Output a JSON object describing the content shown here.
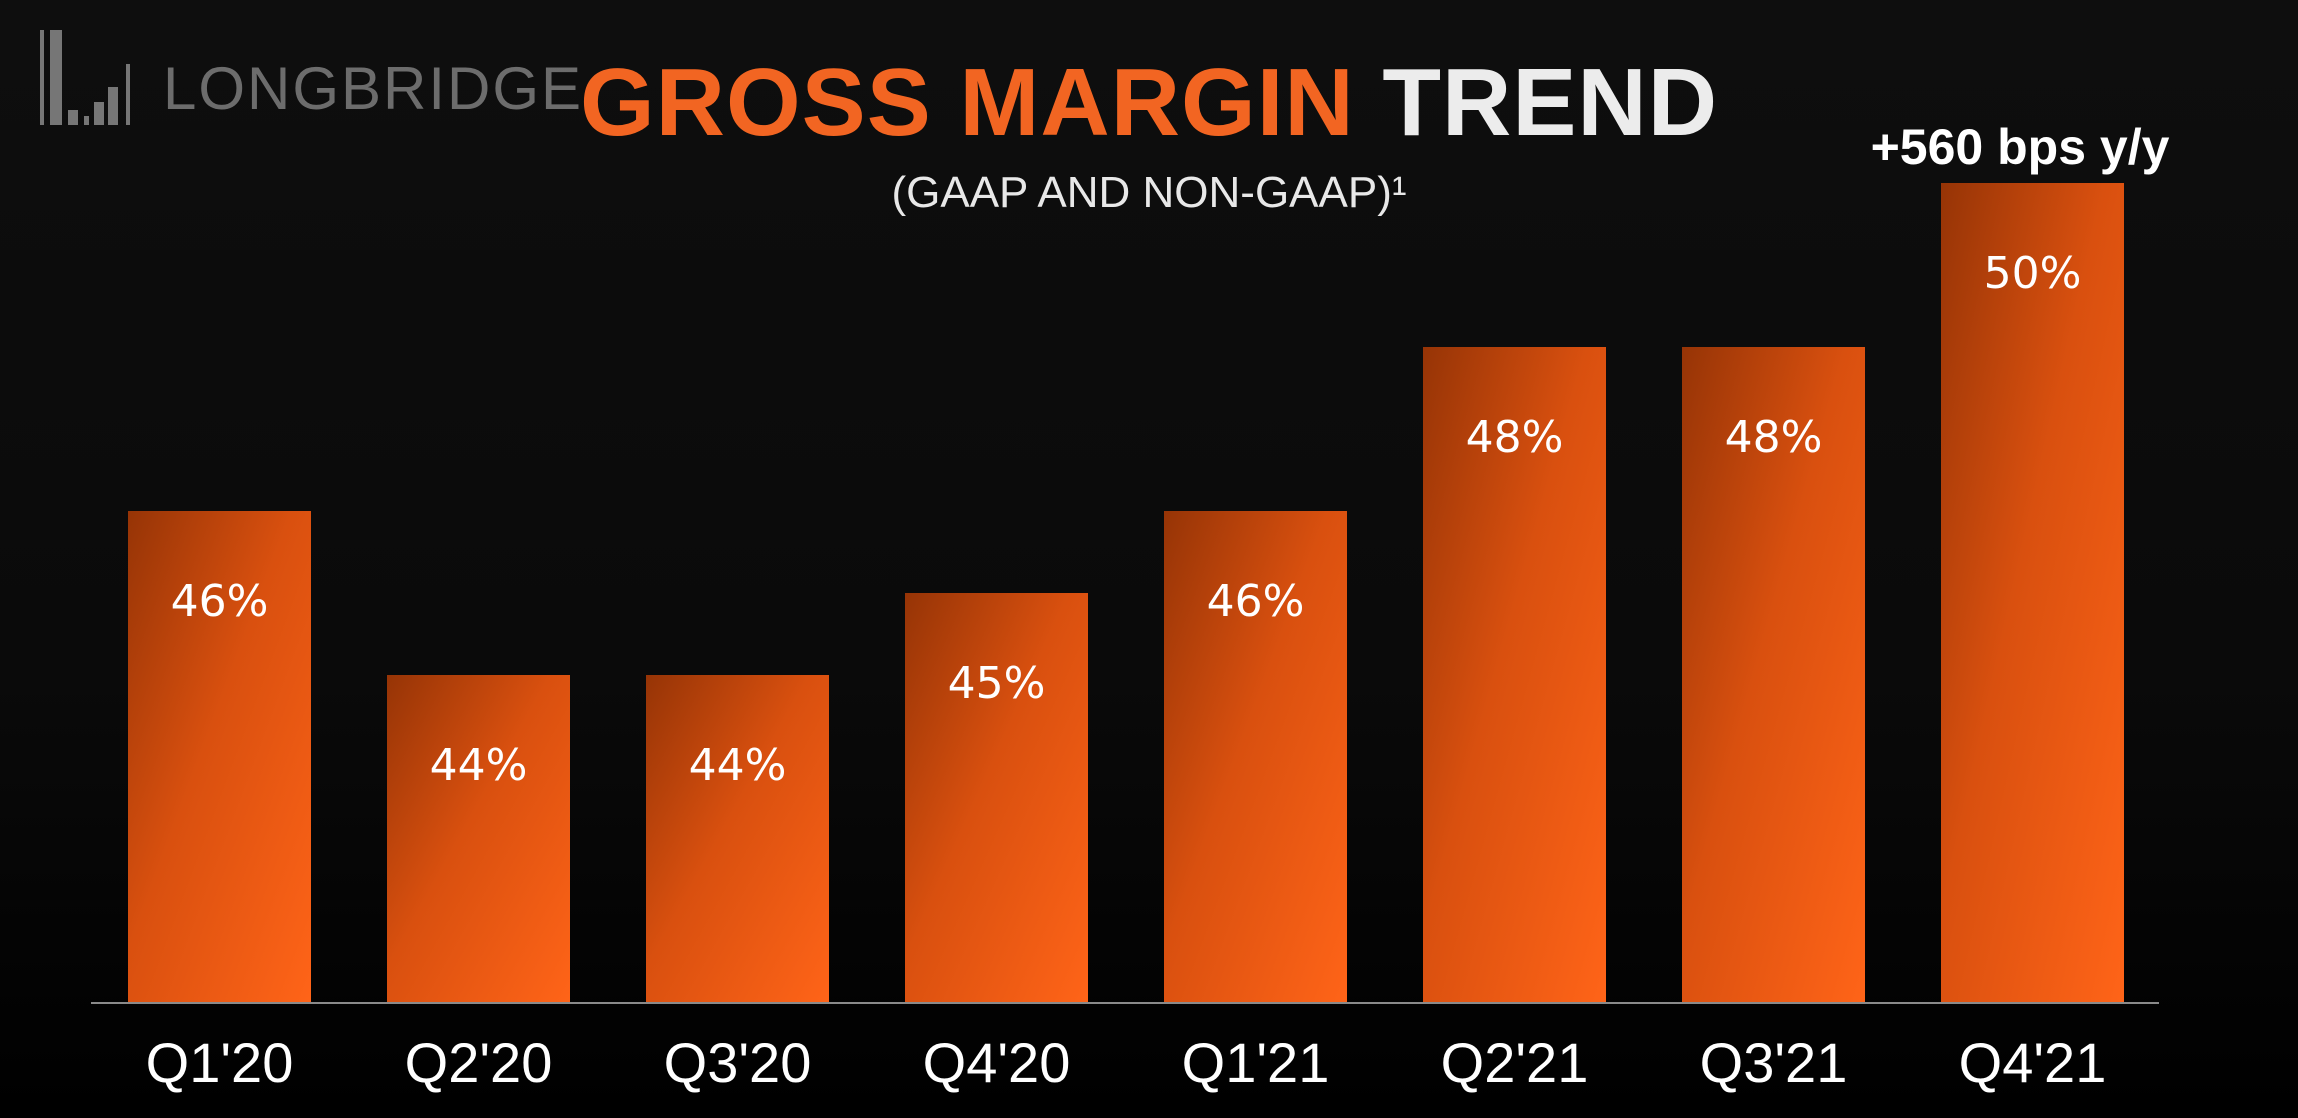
{
  "chart_data": {
    "type": "bar",
    "title_part1": "GROSS MARGIN",
    "title_part2": "TREND",
    "subtitle": "(GAAP AND NON-GAAP)¹",
    "categories": [
      "Q1'20",
      "Q2'20",
      "Q3'20",
      "Q4'20",
      "Q1'21",
      "Q2'21",
      "Q3'21",
      "Q4'21"
    ],
    "values": [
      46,
      44,
      44,
      45,
      46,
      48,
      48,
      50
    ],
    "data_labels": [
      "46%",
      "44%",
      "44%",
      "45%",
      "46%",
      "48%",
      "48%",
      "50%"
    ],
    "annotation": "+560 bps y/y",
    "xlabel": "",
    "ylabel": "",
    "ylim": [
      40,
      50
    ],
    "grid": false,
    "colors": {
      "bar_dark": "#963406",
      "bar_light": "#ff6418",
      "title_accent": "#f26522",
      "background": "#0c0c0c"
    }
  },
  "watermark": "LONGBRIDGE"
}
